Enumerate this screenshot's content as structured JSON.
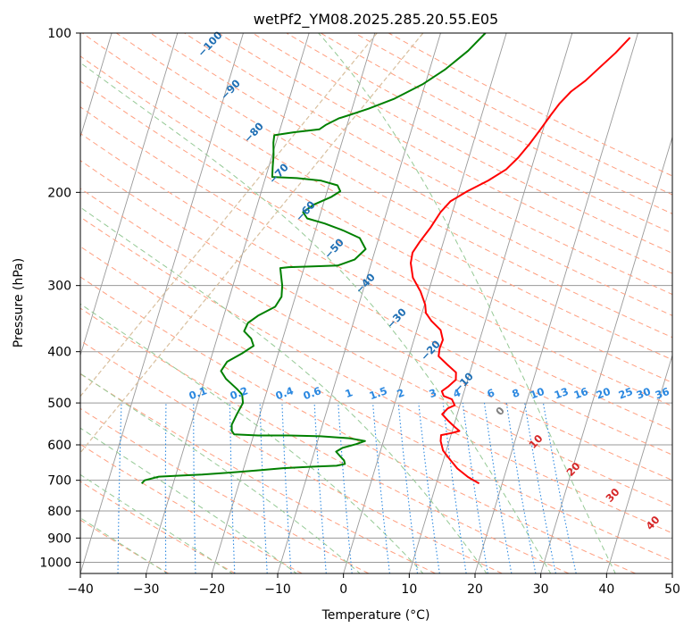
{
  "chart_data": {
    "type": "skew-t log-p diagram",
    "title": "wetPf2_YM08.2025.285.20.55.E05",
    "xlabel": "Temperature (°C)",
    "ylabel": "Pressure (hPa)",
    "xlim": [
      -40,
      50
    ],
    "ylim": [
      1050,
      100
    ],
    "y_scale": "log",
    "x_ticks": [
      "−40",
      "−30",
      "−20",
      "−10",
      "0",
      "10",
      "20",
      "30",
      "40",
      "50"
    ],
    "y_ticks": [
      "100",
      "200",
      "300",
      "400",
      "500",
      "600",
      "700",
      "800",
      "900",
      "1000"
    ],
    "grid": true,
    "series": [
      {
        "name": "",
        "color": "#ff0000",
        "points": [
          [
            16.5,
            710
          ],
          [
            14.5,
            690
          ],
          [
            12.5,
            665
          ],
          [
            11,
            640
          ],
          [
            9.5,
            615
          ],
          [
            8.7,
            590
          ],
          [
            8.5,
            575
          ],
          [
            10,
            570
          ],
          [
            11.1,
            565
          ],
          [
            10.2,
            555
          ],
          [
            8.9,
            540
          ],
          [
            7.7,
            525
          ],
          [
            8.3,
            512
          ],
          [
            9.2,
            505
          ],
          [
            8.5,
            492
          ],
          [
            7.1,
            485
          ],
          [
            6.6,
            475
          ],
          [
            7.4,
            465
          ],
          [
            8.2,
            452
          ],
          [
            7.9,
            438
          ],
          [
            6.2,
            423
          ],
          [
            4.5,
            408
          ],
          [
            4.3,
            394
          ],
          [
            4.4,
            380
          ],
          [
            3.6,
            364
          ],
          [
            1.8,
            350
          ],
          [
            0.6,
            338
          ],
          [
            0.1,
            326
          ],
          [
            -1.2,
            308
          ],
          [
            -3.0,
            290
          ],
          [
            -4.0,
            272
          ],
          [
            -4.2,
            260
          ],
          [
            -3.6,
            248
          ],
          [
            -2.6,
            233
          ],
          [
            -1.8,
            218
          ],
          [
            -0.8,
            208
          ],
          [
            1.3,
            199
          ],
          [
            4.0,
            190
          ],
          [
            6.2,
            181
          ],
          [
            7.5,
            172
          ],
          [
            8.6,
            162
          ],
          [
            9.6,
            152
          ],
          [
            10.5,
            143
          ],
          [
            11.3,
            136
          ],
          [
            12.5,
            129
          ],
          [
            14.2,
            123
          ],
          [
            15.8,
            116
          ],
          [
            17.5,
            109
          ],
          [
            19.0,
            102
          ]
        ]
      },
      {
        "name": "",
        "color": "#008000",
        "points": [
          [
            -34.8,
            710
          ],
          [
            -34.5,
            700
          ],
          [
            -32.5,
            689
          ],
          [
            -28.5,
            685
          ],
          [
            -26.0,
            683
          ],
          [
            -22.0,
            677
          ],
          [
            -18.0,
            671
          ],
          [
            -14.0,
            664
          ],
          [
            -9.8,
            660
          ],
          [
            -6.0,
            657
          ],
          [
            -4.8,
            652
          ],
          [
            -5.1,
            642
          ],
          [
            -5.9,
            630
          ],
          [
            -6.7,
            618
          ],
          [
            -5.9,
            608
          ],
          [
            -4.0,
            598
          ],
          [
            -2.8,
            590
          ],
          [
            -5.3,
            583
          ],
          [
            -9.8,
            578
          ],
          [
            -14.6,
            576
          ],
          [
            -19.3,
            576
          ],
          [
            -23.0,
            573
          ],
          [
            -23.5,
            565
          ],
          [
            -23.8,
            550
          ],
          [
            -23.5,
            525
          ],
          [
            -23.1,
            500
          ],
          [
            -23.6,
            482
          ],
          [
            -24.7,
            470
          ],
          [
            -26.8,
            450
          ],
          [
            -27.9,
            435
          ],
          [
            -27.4,
            418
          ],
          [
            -25.5,
            403
          ],
          [
            -24.1,
            390
          ],
          [
            -24.8,
            378
          ],
          [
            -26.2,
            366
          ],
          [
            -26.0,
            353
          ],
          [
            -24.8,
            342
          ],
          [
            -22.6,
            329
          ],
          [
            -22.1,
            315
          ],
          [
            -22.5,
            300
          ],
          [
            -23.1,
            288
          ],
          [
            -23.6,
            278
          ],
          [
            -22.4,
            277
          ],
          [
            -18.8,
            276
          ],
          [
            -15.0,
            275
          ],
          [
            -12.7,
            268
          ],
          [
            -11.5,
            256
          ],
          [
            -12.9,
            244
          ],
          [
            -15.8,
            236
          ],
          [
            -18.9,
            229
          ],
          [
            -21.8,
            224
          ],
          [
            -22.7,
            218
          ],
          [
            -21.4,
            211
          ],
          [
            -19.1,
            204
          ],
          [
            -18.0,
            199
          ],
          [
            -18.7,
            194
          ],
          [
            -21.5,
            190
          ],
          [
            -25.2,
            188
          ],
          [
            -29.0,
            187
          ],
          [
            -29.4,
            179
          ],
          [
            -29.8,
            170
          ],
          [
            -30.4,
            161
          ],
          [
            -30.6,
            156
          ],
          [
            -27.8,
            154
          ],
          [
            -24.0,
            152
          ],
          [
            -23.2,
            149
          ],
          [
            -21.6,
            145
          ],
          [
            -20.2,
            143
          ],
          [
            -17.5,
            139
          ],
          [
            -14.0,
            133
          ],
          [
            -10.4,
            125
          ],
          [
            -7.6,
            117
          ],
          [
            -5.0,
            108
          ],
          [
            -3.2,
            100
          ]
        ]
      }
    ],
    "dry_adiabat_labels": [
      "−100",
      "−90",
      "−80",
      "−70",
      "−60",
      "−50",
      "−40",
      "−30",
      "−20",
      "−10"
    ],
    "moist_adiabat_labels": [
      "0",
      "10",
      "20",
      "30",
      "40"
    ],
    "mixing_ratio_labels": [
      "0.1",
      "0.2",
      "0.4",
      "0.6",
      "1",
      "1.5",
      "2",
      "3",
      "4",
      "6",
      "8",
      "10",
      "13",
      "16",
      "20",
      "25",
      "30",
      "36"
    ],
    "colors": {
      "isotherm": "#999999",
      "isobar": "#999999",
      "dry_adiabat": "#ff9f80",
      "moist_adiabat": "#95c995",
      "mixing_ratio": "#2b88e0",
      "dry_label": "#1f6fb4",
      "moist_label": "#d62728",
      "tan_curve": "#d8bf9e"
    }
  }
}
